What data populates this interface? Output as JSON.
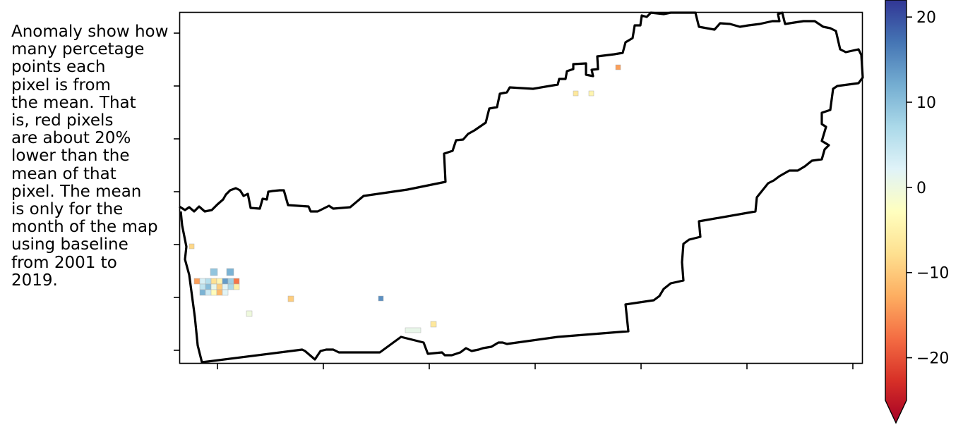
{
  "annotation": {
    "lines": [
      "Anomaly show how",
      "many percetage",
      "points each",
      "pixel is from",
      "the mean. That",
      "is, red pixels",
      "are about 20%",
      "lower than the",
      "mean of that",
      "pixel. The mean",
      "is only for the",
      "month of the map",
      "using baseline",
      "from 2001 to",
      "2019."
    ]
  },
  "colorbar": {
    "colormap": "RdYlBu",
    "vmin": -25,
    "vmax": 22,
    "extend": "min",
    "ticks": [
      20,
      10,
      0,
      -10,
      -20
    ],
    "tick_labels": [
      "20",
      "10",
      "0",
      "−10",
      "−20"
    ],
    "colors": [
      "#a50026",
      "#d73027",
      "#f46d43",
      "#fdae61",
      "#fee090",
      "#ffffbf",
      "#e0f3f8",
      "#abd9e9",
      "#74add1",
      "#4575b4",
      "#313695"
    ]
  },
  "map": {
    "type": "raster anomaly map with region boundary outline",
    "x_tick_count": 7,
    "y_tick_count": 7,
    "tick_labels_shown": false,
    "boundary_color": "#000000"
  },
  "anomaly_pixels": [
    {
      "value": -12
    },
    {
      "value": 4
    },
    {
      "value": 7
    },
    {
      "value": -6
    },
    {
      "value": -3
    },
    {
      "value": 14
    },
    {
      "value": 9
    },
    {
      "value": -15
    },
    {
      "value": 6
    },
    {
      "value": 11
    },
    {
      "value": 2
    },
    {
      "value": -8
    },
    {
      "value": 3
    },
    {
      "value": 8
    },
    {
      "value": -4
    },
    {
      "value": 12
    },
    {
      "value": 5
    },
    {
      "value": -2
    },
    {
      "value": -10
    },
    {
      "value": 3
    },
    {
      "value": -7
    },
    {
      "value": 10
    },
    {
      "value": 12
    },
    {
      "value": 15
    },
    {
      "value": -8
    },
    {
      "value": 1
    },
    {
      "value": -5
    },
    {
      "value": -12
    },
    {
      "value": -3
    },
    {
      "value": -5
    },
    {
      "value": 2
    }
  ]
}
